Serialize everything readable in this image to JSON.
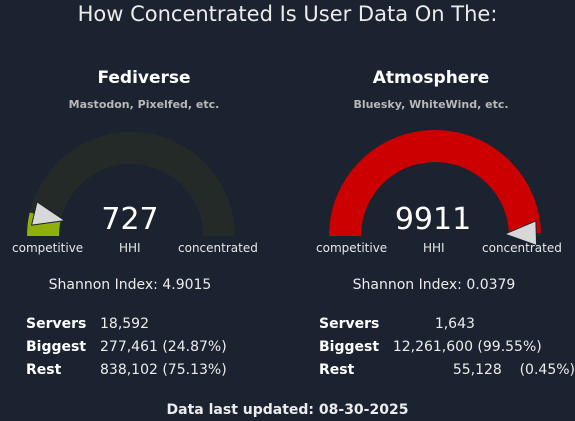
{
  "title": "How Concentrated Is User Data On The:",
  "panels": [
    {
      "name": "Fediverse",
      "subtitle": "Mastodon, Pixelfed, etc.",
      "hhi_value": "727",
      "hhi_label": "HHI",
      "gauge_min_label": "competitive",
      "gauge_max_label": "concentrated",
      "gauge_fraction": 0.0727,
      "fill_color": "#8faf0a",
      "shannon": "Shannon Index: 4.9015",
      "stats": [
        {
          "label": "Servers",
          "value": "18,592"
        },
        {
          "label": "Biggest",
          "value": "277,461 (24.87%)"
        },
        {
          "label": "Rest",
          "value": "838,102 (75.13%)"
        }
      ]
    },
    {
      "name": "Atmosphere",
      "subtitle": "Bluesky, WhiteWind, etc.",
      "hhi_value": "9911",
      "hhi_label": "HHI",
      "gauge_min_label": "competitive",
      "gauge_max_label": "concentrated",
      "gauge_fraction": 0.9911,
      "fill_color": "#cc0000",
      "shannon": "Shannon Index: 0.0379",
      "stats": [
        {
          "label": "Servers",
          "value": "1,643"
        },
        {
          "label": "Biggest",
          "value": "12,261,600 (99.55%)"
        },
        {
          "label": "Rest",
          "value": "55,128    (0.45%)"
        }
      ]
    }
  ],
  "track_color": "#232a28",
  "needle_color": "#d8d8d8",
  "footer": "Data last updated: 08-30-2025"
}
